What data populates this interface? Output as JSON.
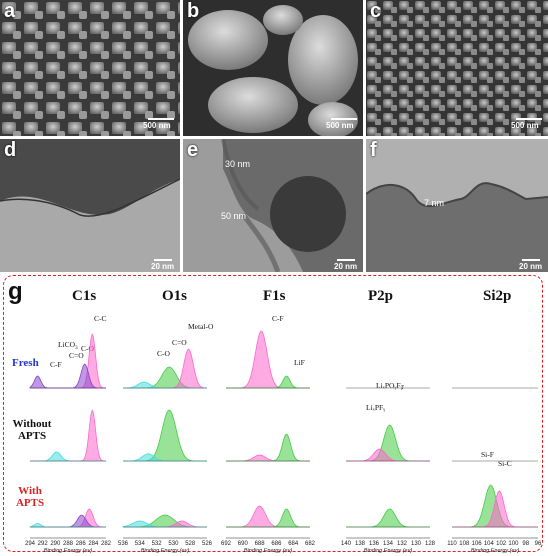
{
  "panels": {
    "a": {
      "letter": "a",
      "scale": "500 nm"
    },
    "b": {
      "letter": "b",
      "scale": "500 nm"
    },
    "c": {
      "letter": "c",
      "scale": "500 nm"
    },
    "d": {
      "letter": "d",
      "scale": "20 nm"
    },
    "e": {
      "letter": "e",
      "scale": "20 nm",
      "annot1": "30 nm",
      "annot2": "50 nm"
    },
    "f": {
      "letter": "f",
      "scale": "20 nm",
      "annot1": "7 nm"
    }
  },
  "xps": {
    "letter": "g",
    "columns": [
      "C1s",
      "O1s",
      "F1s",
      "P2p",
      "Si2p"
    ],
    "rows": [
      {
        "label": "Fresh",
        "color": "#2233cc"
      },
      {
        "label_line1": "Without",
        "label_line2": "APTS",
        "color": "#111111"
      },
      {
        "label_line1": "With",
        "label_line2": "APTS",
        "color": "#e02020"
      }
    ],
    "peaks": {
      "c_cf": "C-F",
      "c_lico3": "LiCO",
      "c_lico3_sub": "3",
      "c_co_double": "C=O",
      "c_co": "C-O",
      "c_cc": "C-C",
      "o_co": "C-O",
      "o_co_double": "C=O",
      "o_metal": "Metal-O",
      "f_cf": "C-F",
      "f_lif": "LiF",
      "p_lipof": "LiₓPOᵧF𝓏",
      "p_lipf": "LiₓPFᵧ",
      "si_f": "Si-F",
      "si_c": "Si-C"
    },
    "axes": {
      "c1s_ticks": [
        "294",
        "292",
        "290",
        "288",
        "286",
        "284",
        "282"
      ],
      "o1s_ticks": [
        "536",
        "534",
        "532",
        "530",
        "528",
        "526"
      ],
      "f1s_ticks": [
        "692",
        "690",
        "688",
        "686",
        "684",
        "682"
      ],
      "p2p_ticks": [
        "140",
        "138",
        "136",
        "134",
        "132",
        "130",
        "128"
      ],
      "si2p_ticks": [
        "110",
        "108",
        "106",
        "104",
        "102",
        "100",
        "98",
        "96"
      ],
      "axis_title": "Binding Energy (ev)"
    },
    "colors": {
      "pink": "#ff66cc",
      "purple": "#8844cc",
      "green": "#44cc44",
      "cyan": "#44dddd",
      "olive": "#888833"
    }
  }
}
